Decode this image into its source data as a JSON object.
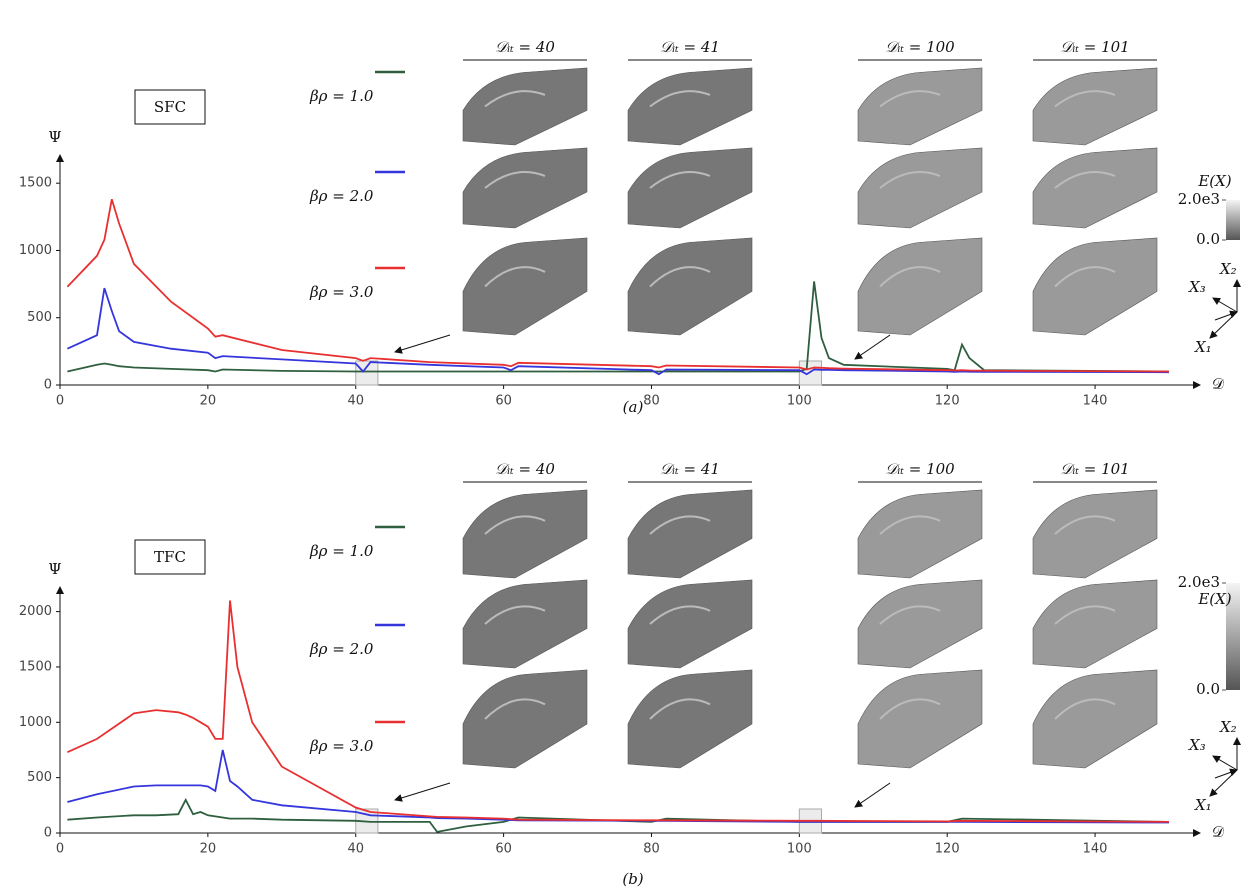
{
  "chart_data": [
    {
      "type": "line",
      "title": "SFC",
      "y_label": "Ψ",
      "x_label": "𝒟",
      "caption": "(a)",
      "xlim": [
        0,
        150
      ],
      "xticks": [
        0,
        20,
        40,
        60,
        80,
        100,
        120,
        140
      ],
      "ylim": [
        0,
        1650
      ],
      "yticks": [
        0,
        500,
        1000,
        1500
      ],
      "column_labels": [
        "𝒟ᵢₜ = 40",
        "𝒟ᵢₜ = 41",
        "𝒟ᵢₜ = 100",
        "𝒟ᵢₜ = 101"
      ],
      "colorbar": {
        "label": "E(X)",
        "lim": [
          0,
          2000
        ],
        "ticks": [
          {
            "value": 2000,
            "label": "2.0e3"
          },
          {
            "value": 0,
            "label": "0.0"
          }
        ]
      },
      "axes_labels": [
        "X₁",
        "X₂",
        "X₃"
      ],
      "x": [
        1,
        5,
        6,
        7,
        8,
        10,
        15,
        20,
        21,
        22,
        30,
        40,
        41,
        42,
        50,
        60,
        61,
        62,
        80,
        81,
        82,
        100,
        101,
        102,
        103,
        104,
        106,
        120,
        121,
        122,
        123,
        125,
        150
      ],
      "series": [
        {
          "name": "βρ = 1.0",
          "color": "#2f5f3f",
          "values": [
            100,
            150,
            160,
            150,
            140,
            130,
            120,
            110,
            100,
            115,
            105,
            100,
            100,
            100,
            100,
            100,
            100,
            100,
            100,
            100,
            100,
            100,
            120,
            770,
            350,
            200,
            150,
            120,
            110,
            300,
            200,
            110,
            100
          ]
        },
        {
          "name": "βρ = 2.0",
          "color": "#3535dd",
          "values": [
            270,
            370,
            720,
            550,
            400,
            320,
            270,
            240,
            200,
            215,
            190,
            160,
            100,
            170,
            150,
            130,
            110,
            140,
            110,
            80,
            115,
            110,
            80,
            115,
            113,
            112,
            110,
            100,
            98,
            100,
            99,
            98,
            95
          ]
        },
        {
          "name": "βρ = 3.0",
          "color": "#e83030",
          "values": [
            730,
            960,
            1080,
            1380,
            1200,
            900,
            620,
            420,
            360,
            370,
            260,
            200,
            180,
            200,
            170,
            150,
            140,
            165,
            140,
            130,
            145,
            130,
            115,
            130,
            128,
            125,
            122,
            110,
            108,
            110,
            108,
            106,
            100
          ]
        }
      ]
    },
    {
      "type": "line",
      "title": "TFC",
      "y_label": "Ψ",
      "x_label": "𝒟",
      "caption": "(b)",
      "xlim": [
        0,
        150
      ],
      "xticks": [
        0,
        20,
        40,
        60,
        80,
        100,
        120,
        140
      ],
      "ylim": [
        0,
        2150
      ],
      "yticks": [
        0,
        500,
        1000,
        1500,
        2000
      ],
      "column_labels": [
        "𝒟ᵢₜ = 40",
        "𝒟ᵢₜ = 41",
        "𝒟ᵢₜ = 100",
        "𝒟ᵢₜ = 101"
      ],
      "colorbar": {
        "label": "E(X)",
        "lim": [
          0,
          2000
        ],
        "ticks": [
          {
            "value": 2000,
            "label": "2.0e3"
          },
          {
            "value": 0,
            "label": "0.0"
          }
        ]
      },
      "axes_labels": [
        "X₁",
        "X₂",
        "X₃"
      ],
      "x": [
        1,
        5,
        10,
        13,
        16,
        17,
        18,
        19,
        20,
        21,
        22,
        23,
        24,
        26,
        30,
        40,
        42,
        50,
        51,
        55,
        60,
        62,
        80,
        82,
        100,
        102,
        120,
        122,
        150
      ],
      "series": [
        {
          "name": "βρ = 1.0",
          "color": "#2f5f3f",
          "values": [
            120,
            140,
            160,
            160,
            170,
            300,
            170,
            190,
            160,
            150,
            140,
            130,
            130,
            130,
            120,
            110,
            100,
            100,
            10,
            60,
            100,
            140,
            100,
            130,
            100,
            100,
            100,
            130,
            100
          ]
        },
        {
          "name": "βρ = 2.0",
          "color": "#3535dd",
          "values": [
            280,
            350,
            420,
            430,
            430,
            430,
            430,
            430,
            420,
            380,
            750,
            470,
            420,
            300,
            250,
            190,
            160,
            140,
            135,
            130,
            120,
            115,
            110,
            110,
            100,
            100,
            100,
            100,
            95
          ]
        },
        {
          "name": "βρ = 3.0",
          "color": "#e83030",
          "values": [
            730,
            850,
            1080,
            1110,
            1090,
            1070,
            1040,
            1000,
            960,
            850,
            850,
            2100,
            1500,
            1000,
            600,
            230,
            190,
            150,
            145,
            140,
            130,
            120,
            115,
            115,
            110,
            110,
            105,
            110,
            100
          ]
        }
      ]
    }
  ]
}
